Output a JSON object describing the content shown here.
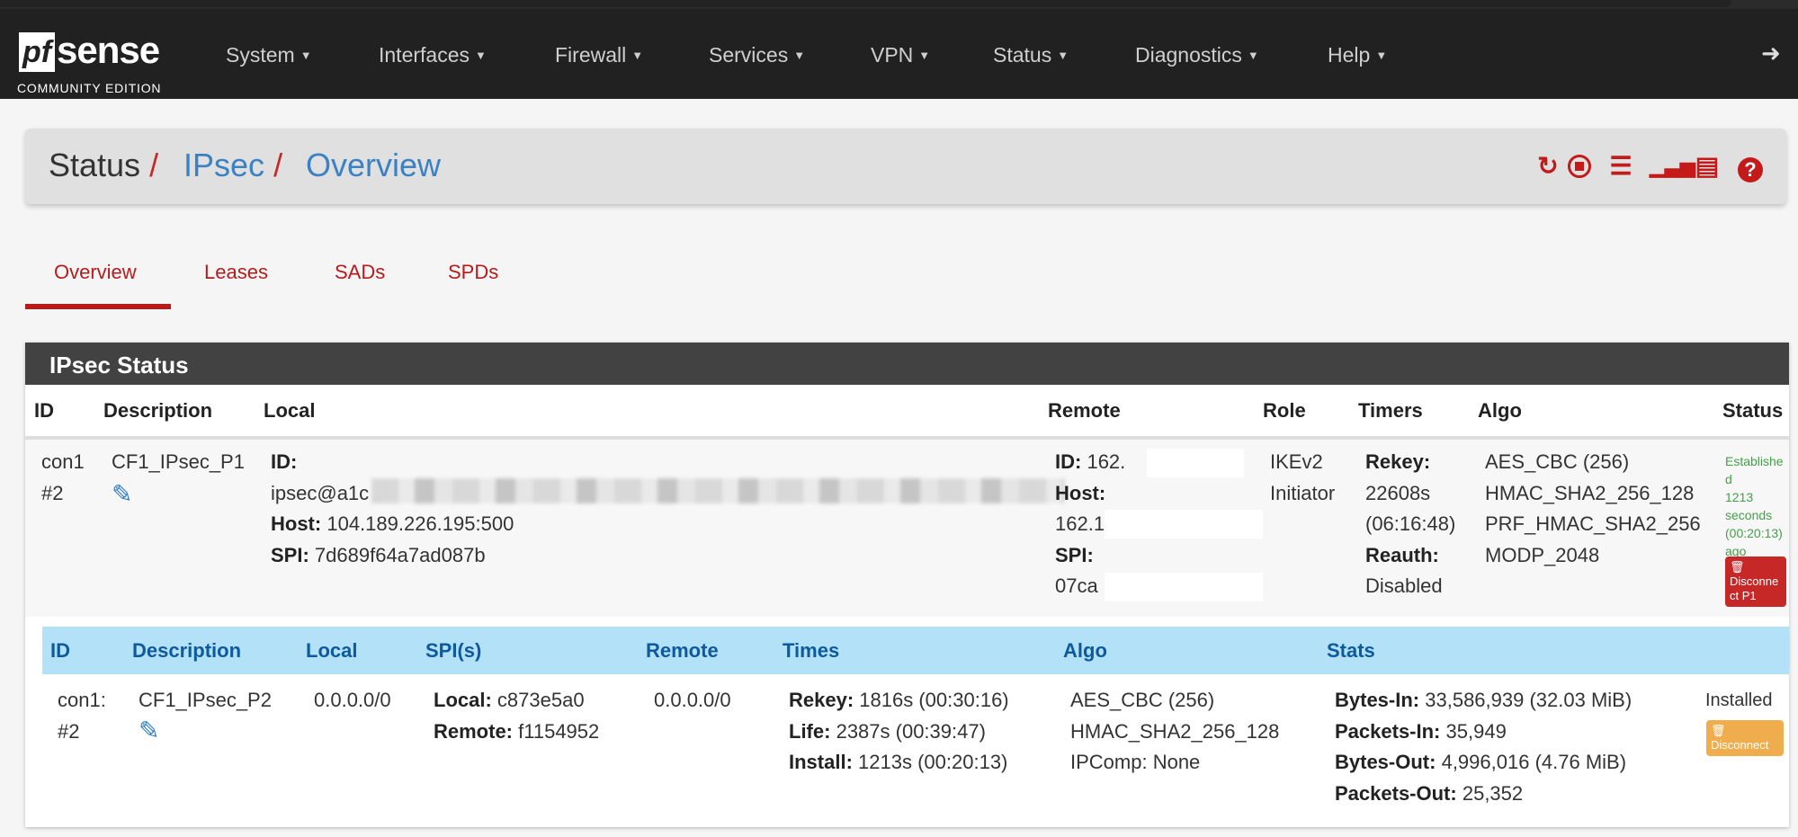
{
  "brand": {
    "logo_text": "pfsense",
    "edition": "COMMUNITY EDITION"
  },
  "nav": {
    "items": [
      {
        "label": "System"
      },
      {
        "label": "Interfaces"
      },
      {
        "label": "Firewall"
      },
      {
        "label": "Services"
      },
      {
        "label": "VPN"
      },
      {
        "label": "Status"
      },
      {
        "label": "Diagnostics"
      },
      {
        "label": "Help"
      }
    ],
    "logout_icon": "sign-out-icon"
  },
  "breadcrumb": {
    "items": [
      "Status",
      "IPsec",
      "Overview"
    ],
    "separator": "/"
  },
  "toolbar_icons": [
    "refresh-icon",
    "stop-icon",
    "sliders-icon",
    "bar-chart-icon",
    "list-icon",
    "help-icon"
  ],
  "tabs": [
    {
      "label": "Overview",
      "active": true
    },
    {
      "label": "Leases"
    },
    {
      "label": "SADs"
    },
    {
      "label": "SPDs"
    }
  ],
  "panel": {
    "title": "IPsec Status",
    "p1_headers": [
      "ID",
      "Description",
      "Local",
      "Remote",
      "Role",
      "Timers",
      "Algo",
      "Status"
    ],
    "p1": {
      "id_line1": "con1",
      "id_line2": "#2",
      "description": "CF1_IPsec_P1",
      "local": {
        "id_label": "ID:",
        "id_value": "ipsec@a1c",
        "host_label": "Host:",
        "host_value": "104.189.226.195:500",
        "spi_label": "SPI:",
        "spi_value": "7d689f64a7ad087b"
      },
      "remote": {
        "id_label": "ID:",
        "id_value": "162.",
        "host_label": "Host:",
        "host_value": "162.1",
        "spi_label": "SPI:",
        "spi_value": "07ca"
      },
      "role": [
        "IKEv2",
        "Initiator"
      ],
      "timers": {
        "rekey_label": "Rekey:",
        "rekey_value": "22608s",
        "rekey_hms": "(06:16:48)",
        "reauth_label": "Reauth:",
        "reauth_value": "Disabled"
      },
      "algo": [
        "AES_CBC (256)",
        "HMAC_SHA2_256_128",
        "PRF_HMAC_SHA2_256",
        "MODP_2048"
      ],
      "status": [
        "Established",
        "1213 seconds",
        "(00:20:13) ago"
      ],
      "disconnect_label": "Disconnect P1"
    },
    "p2_headers": [
      "ID",
      "Description",
      "Local",
      "SPI(s)",
      "Remote",
      "Times",
      "Algo",
      "Stats"
    ],
    "p2": {
      "id_line1": "con1:",
      "id_line2": "#2",
      "description": "CF1_IPsec_P2",
      "local": "0.0.0.0/0",
      "spi_local_label": "Local:",
      "spi_local": "c873e5a0",
      "spi_remote_label": "Remote:",
      "spi_remote": "f1154952",
      "remote": "0.0.0.0/0",
      "times": [
        {
          "label": "Rekey:",
          "value": "1816s (00:30:16)"
        },
        {
          "label": "Life:",
          "value": "2387s (00:39:47)"
        },
        {
          "label": "Install:",
          "value": "1213s (00:20:13)"
        }
      ],
      "algo": [
        "AES_CBC (256)",
        "HMAC_SHA2_256_128",
        "IPComp: None"
      ],
      "stats": [
        {
          "label": "Bytes-In:",
          "value": "33,586,939 (32.03 MiB)"
        },
        {
          "label": "Packets-In:",
          "value": "35,949"
        },
        {
          "label": "Bytes-Out:",
          "value": "4,996,016 (4.76 MiB)"
        },
        {
          "label": "Packets-Out:",
          "value": "25,352"
        }
      ],
      "status": "Installed",
      "disconnect_label": "Disconnect"
    }
  },
  "colors": {
    "nav_bg": "#212121",
    "accent_red": "#b71c1c",
    "link_blue": "#3b82c4",
    "p2_header_bg": "#b3e1f7",
    "status_green": "#43a047",
    "warning_orange": "#f0ad4e"
  }
}
